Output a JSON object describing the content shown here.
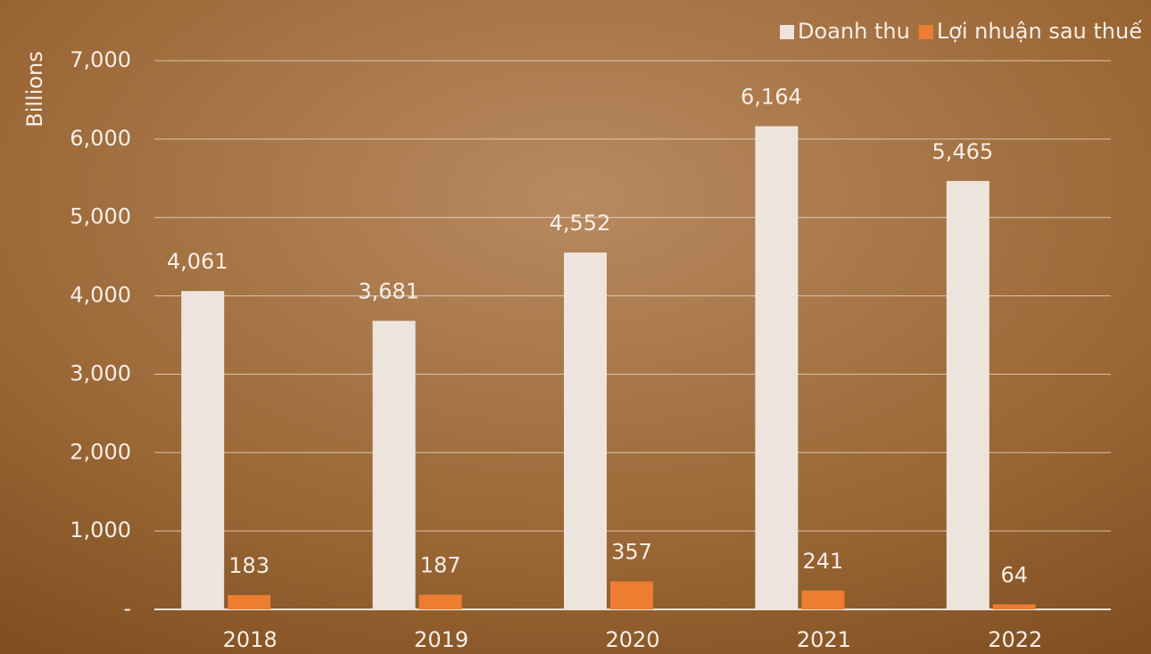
{
  "chart_data": {
    "type": "bar",
    "y_axis_label": "Billions",
    "categories": [
      "2018",
      "2019",
      "2020",
      "2021",
      "2022"
    ],
    "series": [
      {
        "name": "Doanh thu",
        "color": "#ede4dd",
        "values": [
          4061,
          3681,
          4552,
          6164,
          5465
        ],
        "value_labels": [
          "4,061",
          "3,681",
          "4,552",
          "6,164",
          "5,465"
        ]
      },
      {
        "name": "Lợi nhuận sau thuế",
        "color": "#ed7d31",
        "values": [
          183,
          187,
          357,
          241,
          64
        ]
      }
    ],
    "ylim": [
      0,
      7000
    ],
    "yticks": [
      {
        "value": 0,
        "label": "-"
      },
      {
        "value": 1000,
        "label": "1,000"
      },
      {
        "value": 2000,
        "label": "2,000"
      },
      {
        "value": 3000,
        "label": "3,000"
      },
      {
        "value": 4000,
        "label": "4,000"
      },
      {
        "value": 5000,
        "label": "5,000"
      },
      {
        "value": 6000,
        "label": "6,000"
      },
      {
        "value": 7000,
        "label": "7,000"
      }
    ],
    "grid": true,
    "legend": "top-right"
  }
}
